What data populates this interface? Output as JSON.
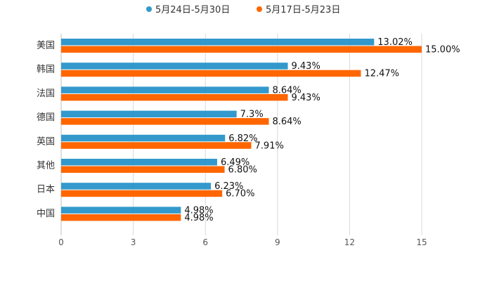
{
  "chart_data": {
    "type": "bar",
    "orientation": "horizontal",
    "categories": [
      "美国",
      "韩国",
      "法国",
      "德国",
      "英国",
      "其他",
      "日本",
      "中国"
    ],
    "series": [
      {
        "name": "5月24日-5月30日",
        "color": "#3399cc",
        "values": [
          13.02,
          9.43,
          8.64,
          7.3,
          6.82,
          6.49,
          6.23,
          4.98
        ],
        "labels": [
          "13.02%",
          "9.43%",
          "8.64%",
          "7.3%",
          "6.82%",
          "6.49%",
          "6.23%",
          "4.98%"
        ]
      },
      {
        "name": "5月17日-5月23日",
        "color": "#ff6600",
        "values": [
          15.0,
          12.47,
          9.43,
          8.64,
          7.91,
          6.8,
          6.7,
          4.98
        ],
        "labels": [
          "15.00%",
          "12.47%",
          "9.43%",
          "8.64%",
          "7.91%",
          "6.80%",
          "6.70%",
          "4.98%"
        ]
      }
    ],
    "xlim": [
      0,
      15
    ],
    "xticks": [
      0,
      3,
      6,
      9,
      12,
      15
    ],
    "xtick_labels": [
      "0",
      "3",
      "6",
      "9",
      "12",
      "15"
    ],
    "grid": true,
    "legend_position": "top-center",
    "title": "",
    "xlabel": "",
    "ylabel": ""
  }
}
